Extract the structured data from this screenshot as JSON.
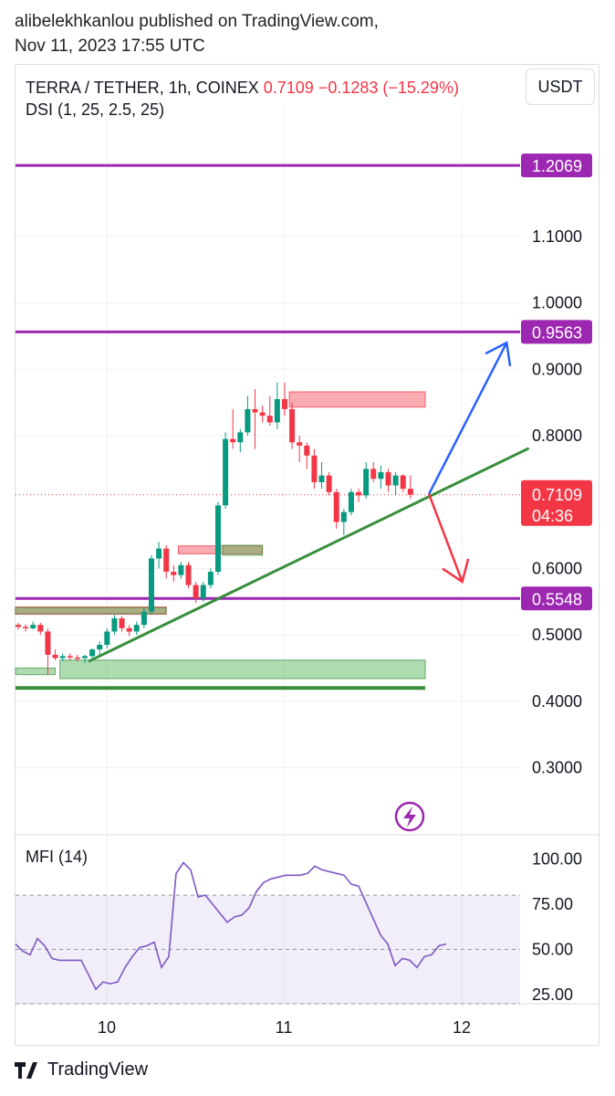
{
  "header": {
    "line1": "alibelekhkanlou published on TradingView.com,",
    "line2": "Nov 11, 2023 17:55 UTC"
  },
  "legend": {
    "symbol": "TERRA / TETHER, 1h, COINEX",
    "price": "0.7109",
    "change": "−0.1283 (−15.29%)",
    "indicator": "DSI (1, 25, 2.5, 25)"
  },
  "currency_button": "USDT",
  "mfi_label": "MFI (14)",
  "footer": {
    "brand": "TradingView"
  },
  "colors": {
    "up": "#089981",
    "down": "#f23645",
    "level": "#9c27b0",
    "trend": "#388e3c",
    "blue_arrow": "#2962ff",
    "red_arrow": "#f23645"
  },
  "chart_data": [
    {
      "type": "candlestick",
      "title": "TERRA / TETHER, 1h, COINEX",
      "y_ticks": [
        "1.1000",
        "1.0000",
        "0.9000",
        "0.8000",
        "0.6000",
        "0.5000",
        "0.4000",
        "0.3000"
      ],
      "x_ticks": [
        "10",
        "11",
        "12"
      ],
      "last_price": "0.7109",
      "countdown": "04:36",
      "levels": [
        {
          "value": 1.2069,
          "label": "1.2069"
        },
        {
          "value": 0.9563,
          "label": "0.9563"
        },
        {
          "value": 0.5548,
          "label": "0.5548"
        }
      ],
      "candles": [
        [
          0.515,
          0.518,
          0.508,
          0.512
        ],
        [
          0.512,
          0.516,
          0.505,
          0.51
        ],
        [
          0.51,
          0.52,
          0.508,
          0.515
        ],
        [
          0.515,
          0.518,
          0.5,
          0.505
        ],
        [
          0.505,
          0.51,
          0.44,
          0.47
        ],
        [
          0.47,
          0.478,
          0.462,
          0.465
        ],
        [
          0.465,
          0.472,
          0.46,
          0.468
        ],
        [
          0.468,
          0.472,
          0.462,
          0.466
        ],
        [
          0.466,
          0.47,
          0.46,
          0.465
        ],
        [
          0.465,
          0.47,
          0.458,
          0.468
        ],
        [
          0.468,
          0.48,
          0.465,
          0.478
        ],
        [
          0.478,
          0.49,
          0.47,
          0.485
        ],
        [
          0.485,
          0.51,
          0.48,
          0.505
        ],
        [
          0.505,
          0.53,
          0.5,
          0.525
        ],
        [
          0.525,
          0.528,
          0.505,
          0.51
        ],
        [
          0.51,
          0.515,
          0.498,
          0.505
        ],
        [
          0.505,
          0.52,
          0.5,
          0.515
        ],
        [
          0.515,
          0.54,
          0.51,
          0.535
        ],
        [
          0.535,
          0.62,
          0.53,
          0.615
        ],
        [
          0.615,
          0.64,
          0.6,
          0.63
        ],
        [
          0.63,
          0.635,
          0.585,
          0.595
        ],
        [
          0.595,
          0.605,
          0.58,
          0.59
        ],
        [
          0.59,
          0.61,
          0.585,
          0.605
        ],
        [
          0.605,
          0.61,
          0.57,
          0.575
        ],
        [
          0.575,
          0.58,
          0.548,
          0.555
        ],
        [
          0.555,
          0.58,
          0.55,
          0.575
        ],
        [
          0.575,
          0.6,
          0.57,
          0.595
        ],
        [
          0.595,
          0.7,
          0.59,
          0.695
        ],
        [
          0.695,
          0.805,
          0.69,
          0.795
        ],
        [
          0.795,
          0.84,
          0.78,
          0.79
        ],
        [
          0.79,
          0.81,
          0.775,
          0.805
        ],
        [
          0.805,
          0.86,
          0.8,
          0.84
        ],
        [
          0.84,
          0.87,
          0.78,
          0.835
        ],
        [
          0.835,
          0.845,
          0.82,
          0.83
        ],
        [
          0.83,
          0.86,
          0.815,
          0.82
        ],
        [
          0.82,
          0.88,
          0.81,
          0.855
        ],
        [
          0.855,
          0.88,
          0.83,
          0.84
        ],
        [
          0.84,
          0.85,
          0.78,
          0.79
        ],
        [
          0.79,
          0.8,
          0.76,
          0.785
        ],
        [
          0.785,
          0.79,
          0.75,
          0.77
        ],
        [
          0.77,
          0.78,
          0.72,
          0.73
        ],
        [
          0.73,
          0.76,
          0.72,
          0.74
        ],
        [
          0.74,
          0.745,
          0.71,
          0.715
        ],
        [
          0.715,
          0.72,
          0.66,
          0.67
        ],
        [
          0.67,
          0.69,
          0.65,
          0.685
        ],
        [
          0.685,
          0.72,
          0.68,
          0.715
        ],
        [
          0.715,
          0.72,
          0.7,
          0.71
        ],
        [
          0.71,
          0.76,
          0.705,
          0.75
        ],
        [
          0.75,
          0.76,
          0.73,
          0.735
        ],
        [
          0.735,
          0.755,
          0.72,
          0.745
        ],
        [
          0.745,
          0.75,
          0.715,
          0.725
        ],
        [
          0.725,
          0.745,
          0.71,
          0.74
        ],
        [
          0.74,
          0.742,
          0.715,
          0.72
        ],
        [
          0.72,
          0.74,
          0.705,
          0.711
        ]
      ],
      "red_boxes": [
        {
          "from": 37,
          "to": 55,
          "top": 0.866,
          "bottom": 0.843
        },
        {
          "from": 22,
          "to": 33,
          "top": 0.634,
          "bottom": 0.622
        },
        {
          "from": 0,
          "to": 20,
          "top": 0.542,
          "bottom": 0.531
        }
      ],
      "green_boxes": [
        {
          "from": 28,
          "to": 33,
          "top": 0.635,
          "bottom": 0.62
        },
        {
          "from": 0,
          "to": 20,
          "top": 0.541,
          "bottom": 0.532
        },
        {
          "from": 6,
          "to": 55,
          "top": 0.462,
          "bottom": 0.434
        },
        {
          "from": 0,
          "to": 5,
          "top": 0.45,
          "bottom": 0.44
        }
      ],
      "support_line": 0.42,
      "trendline": {
        "from": [
          9.5,
          0.46
        ],
        "to": [
          69,
          0.781
        ]
      },
      "arrows": {
        "up": {
          "from": [
            55.5,
            0.712
          ],
          "to": [
            66,
            0.94
          ]
        },
        "down": {
          "from": [
            55.5,
            0.712
          ],
          "to": [
            60,
            0.58
          ]
        }
      }
    },
    {
      "type": "line",
      "title": "MFI (14)",
      "y_ticks": [
        "100.00",
        "75.00",
        "50.00",
        "25.00"
      ],
      "band": [
        20,
        80
      ],
      "values": [
        53,
        49,
        47,
        56,
        52,
        45,
        44,
        44,
        44,
        44,
        36,
        28,
        32,
        31,
        32,
        40,
        46,
        51,
        52,
        54,
        40,
        46,
        92,
        98,
        94,
        79,
        80,
        75,
        70,
        65,
        68,
        69,
        73,
        82,
        87,
        89,
        90,
        91,
        91,
        91,
        92,
        96,
        94,
        93,
        92,
        91,
        86,
        85,
        76,
        67,
        58,
        53,
        41,
        45,
        44,
        40,
        46,
        47,
        52,
        53
      ]
    }
  ]
}
